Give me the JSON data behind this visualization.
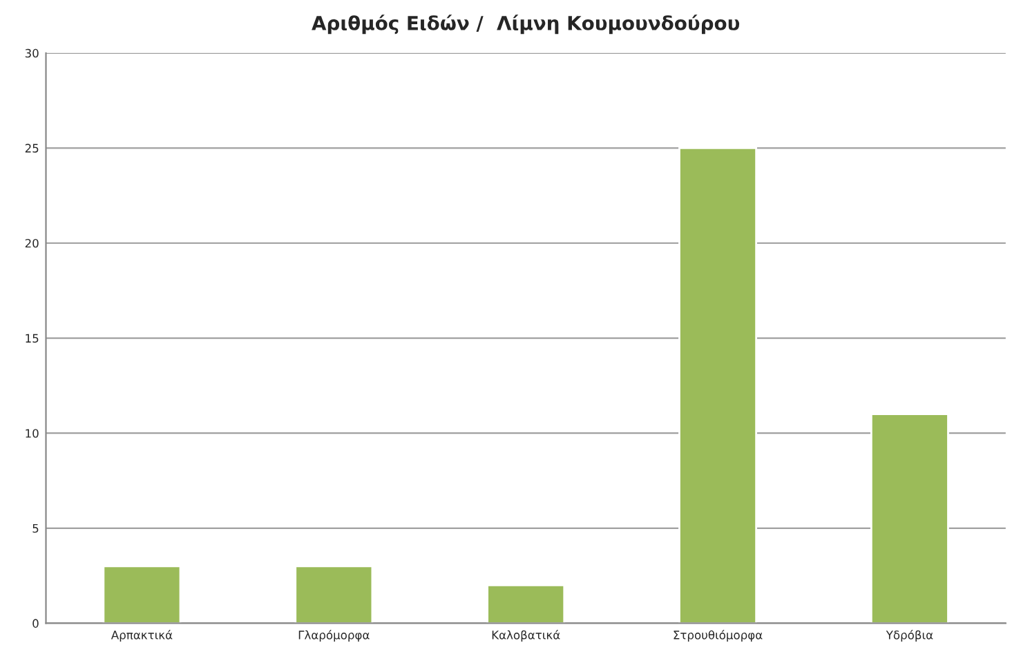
{
  "chart_data": {
    "type": "bar",
    "title": "Αριθμός Ειδών /  Λίμνη Κουμουνδούρου",
    "categories": [
      "Αρπακτικά",
      "Γλαρόμορφα",
      "Καλοβατικά",
      "Στρουθιόμορφα",
      "Υδρόβια"
    ],
    "values": [
      3,
      3,
      2,
      25,
      11
    ],
    "color": "#9bbb59",
    "ylim": [
      0,
      30
    ],
    "yticks": [
      0,
      5,
      10,
      15,
      20,
      25,
      30
    ],
    "grid": "y",
    "legend": false
  }
}
